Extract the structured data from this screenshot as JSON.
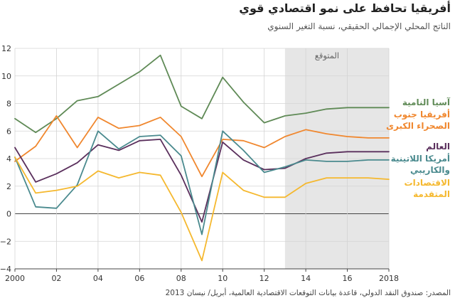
{
  "title": "أفريقيا تحافظ على نمو اقتصادي قوي",
  "subtitle": "الناتج المحلي الإجمالي الحقيقي، نسبة التغير السنوي",
  "source": "المصدر: صندوق النقد الدولي، قاعدة بيانات التوقعات الاقتصادية العالمية، أبريل/ نيسان 2013",
  "chart_data": {
    "type": "line",
    "x": [
      2000,
      2001,
      2002,
      2003,
      2004,
      2005,
      2006,
      2007,
      2008,
      2009,
      2010,
      2011,
      2012,
      2013,
      2014,
      2015,
      2016,
      2017,
      2018
    ],
    "x_tick_values": [
      2000,
      2002,
      2004,
      2006,
      2008,
      2010,
      2012,
      2014,
      2016,
      2018
    ],
    "x_tick_labels": [
      "2000",
      "02",
      "04",
      "06",
      "08",
      "10",
      "12",
      "14",
      "16",
      "2018"
    ],
    "y_ticks": [
      12,
      10,
      8,
      6,
      4,
      2,
      0,
      -2,
      -4
    ],
    "y_tick_labels": [
      "12",
      "10",
      "8",
      "6",
      "4",
      "2",
      "0",
      "−2",
      "−4"
    ],
    "xlim": [
      2000,
      2018
    ],
    "ylim": [
      -4,
      12
    ],
    "grid": "horizontal and vertical",
    "forecast": {
      "label": "المتوقع",
      "start": 2013,
      "end": 2018,
      "color": "#e6e6e6"
    },
    "series": [
      {
        "name": "آسيا النامية",
        "color": "#5f8a56",
        "label_lines": [
          "آسيا النامية"
        ],
        "values": [
          6.9,
          5.9,
          6.9,
          8.2,
          8.5,
          9.4,
          10.3,
          11.5,
          7.8,
          6.9,
          9.9,
          8.1,
          6.6,
          7.1,
          7.3,
          7.6,
          7.7,
          7.7,
          7.7
        ]
      },
      {
        "name": "أفريقيا جنوب الصحراء الكبرى",
        "color": "#f0872e",
        "label_lines": [
          "أفريقيا جنوب",
          "الصحراء الكبرى"
        ],
        "values": [
          3.8,
          4.9,
          7.1,
          4.8,
          7.0,
          6.2,
          6.4,
          7.0,
          5.6,
          2.7,
          5.4,
          5.3,
          4.8,
          5.6,
          6.1,
          5.8,
          5.6,
          5.5,
          5.5
        ]
      },
      {
        "name": "العالم",
        "color": "#5a2f5c",
        "label_lines": [
          "العالم"
        ],
        "values": [
          4.8,
          2.3,
          2.9,
          3.7,
          5.0,
          4.6,
          5.3,
          5.4,
          2.8,
          -0.6,
          5.2,
          3.9,
          3.2,
          3.3,
          4.0,
          4.4,
          4.5,
          4.5,
          4.5
        ]
      },
      {
        "name": "أمريكا اللاتينية والكاريبي",
        "color": "#4a8a8e",
        "label_lines": [
          "أمريكا اللاتينية",
          "والكاريبي"
        ],
        "values": [
          4.1,
          0.5,
          0.4,
          2.1,
          6.0,
          4.7,
          5.6,
          5.7,
          4.2,
          -1.5,
          6.0,
          4.6,
          3.0,
          3.4,
          3.9,
          3.8,
          3.8,
          3.9,
          3.9
        ]
      },
      {
        "name": "الاقتصادات المتقدمة",
        "color": "#f5b82e",
        "label_lines": [
          "الاقتصادات",
          "المتقدمة"
        ],
        "values": [
          4.1,
          1.5,
          1.7,
          2.0,
          3.1,
          2.6,
          3.0,
          2.8,
          0.1,
          -3.4,
          3.0,
          1.7,
          1.2,
          1.2,
          2.2,
          2.6,
          2.6,
          2.6,
          2.5
        ]
      }
    ]
  }
}
